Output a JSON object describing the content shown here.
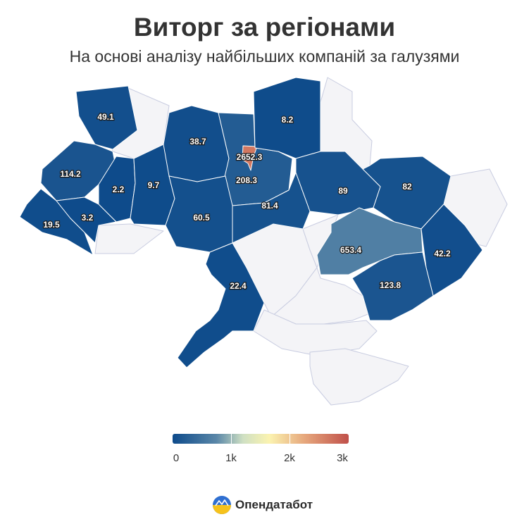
{
  "title": "Виторг за регіонами",
  "subtitle": "На основі аналізу найбільших компаній за галузями",
  "colors": {
    "scale": [
      "#0e4b8b",
      "#5a87a8",
      "#cfe0c3",
      "#fbf3b0",
      "#e6a77c",
      "#c0504a"
    ],
    "no_data": "#f4f4f7"
  },
  "legend": {
    "min": 0,
    "max": 3000,
    "ticks": [
      {
        "value": 0,
        "label": "0"
      },
      {
        "value": 1000,
        "label": "1k"
      },
      {
        "value": 2000,
        "label": "2k"
      },
      {
        "value": 3000,
        "label": "3k"
      }
    ]
  },
  "regions": [
    {
      "id": "volyn",
      "label": "49.1",
      "value": 49.1
    },
    {
      "id": "rivne",
      "label": "38.7",
      "value": 38.7
    },
    {
      "id": "kyiv-oblast",
      "label": "208.3",
      "value": 208.3
    },
    {
      "id": "kyiv-city",
      "label": "2652.3",
      "value": 2652.3
    },
    {
      "id": "chernihiv",
      "label": "8.2",
      "value": 8.2
    },
    {
      "id": "lviv",
      "label": "114.2",
      "value": 114.2
    },
    {
      "id": "ternopil",
      "label": "2.2",
      "value": 2.2
    },
    {
      "id": "khmelnytskyi",
      "label": "9.7",
      "value": 9.7
    },
    {
      "id": "zhytomyr-south",
      "label": "60.5",
      "value": 60.5
    },
    {
      "id": "cherkasy",
      "label": "81.4",
      "value": 81.4
    },
    {
      "id": "poltava",
      "label": "89",
      "value": 89
    },
    {
      "id": "kharkiv",
      "label": "82",
      "value": 82
    },
    {
      "id": "zakarpattia",
      "label": "19.5",
      "value": 19.5
    },
    {
      "id": "ivano-frankivsk",
      "label": "3.2",
      "value": 3.2
    },
    {
      "id": "dnipro",
      "label": "653.4",
      "value": 653.4
    },
    {
      "id": "luhansk",
      "label": "42.2",
      "value": 42.2
    },
    {
      "id": "zaporizhzhia",
      "label": "123.8",
      "value": 123.8
    },
    {
      "id": "odesa",
      "label": "22.4",
      "value": 22.4
    }
  ],
  "brand": {
    "name": "Опендатабот"
  }
}
